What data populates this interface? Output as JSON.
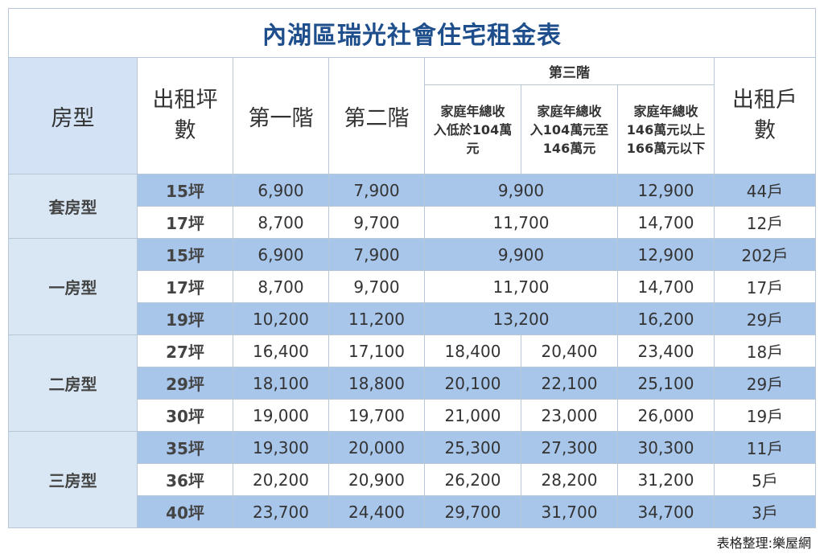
{
  "title": "內湖區瑞光社會住宅租金表",
  "headers": {
    "type": "房型",
    "size": "出租坪\n數",
    "floor1": "第一階",
    "floor2": "第二階",
    "floor3": "第三階",
    "floor3_sub": [
      "家庭年總收\n入低於104萬\n元",
      "家庭年總收\n入104萬元至\n146萬元",
      "家庭年總收\n146萬元以上\n166萬元以下"
    ],
    "units": "出租戶\n數"
  },
  "groups": [
    {
      "type": "套房型",
      "rows": [
        {
          "size": "15坪",
          "t1": "6,900",
          "t2": "7,900",
          "t3": "9,900",
          "t4": null,
          "t5": "12,900",
          "units": "44戶"
        },
        {
          "size": "17坪",
          "t1": "8,700",
          "t2": "9,700",
          "t3": "11,700",
          "t4": null,
          "t5": "14,700",
          "units": "12戶"
        }
      ]
    },
    {
      "type": "一房型",
      "rows": [
        {
          "size": "15坪",
          "t1": "6,900",
          "t2": "7,900",
          "t3": "9,900",
          "t4": null,
          "t5": "12,900",
          "units": "202戶"
        },
        {
          "size": "17坪",
          "t1": "8,700",
          "t2": "9,700",
          "t3": "11,700",
          "t4": null,
          "t5": "14,700",
          "units": "17戶"
        },
        {
          "size": "19坪",
          "t1": "10,200",
          "t2": "11,200",
          "t3": "13,200",
          "t4": null,
          "t5": "16,200",
          "units": "29戶"
        }
      ]
    },
    {
      "type": "二房型",
      "rows": [
        {
          "size": "27坪",
          "t1": "16,400",
          "t2": "17,100",
          "t3": "18,400",
          "t4": "20,400",
          "t5": "23,400",
          "units": "18戶"
        },
        {
          "size": "29坪",
          "t1": "18,100",
          "t2": "18,800",
          "t3": "20,100",
          "t4": "22,100",
          "t5": "25,100",
          "units": "29戶"
        },
        {
          "size": "30坪",
          "t1": "19,000",
          "t2": "19,700",
          "t3": "21,000",
          "t4": "23,000",
          "t5": "26,000",
          "units": "19戶"
        }
      ]
    },
    {
      "type": "三房型",
      "rows": [
        {
          "size": "35坪",
          "t1": "19,300",
          "t2": "20,000",
          "t3": "25,300",
          "t4": "27,300",
          "t5": "30,300",
          "units": "11戶"
        },
        {
          "size": "36坪",
          "t1": "20,200",
          "t2": "20,900",
          "t3": "26,200",
          "t4": "28,200",
          "t5": "31,200",
          "units": "5戶"
        },
        {
          "size": "40坪",
          "t1": "23,700",
          "t2": "24,400",
          "t3": "29,700",
          "t4": "31,700",
          "t5": "34,700",
          "units": "3戶"
        }
      ]
    }
  ],
  "credit": "表格整理:樂屋網",
  "colors": {
    "title": "#1e4e8c",
    "row_blue": "#a8c5ea",
    "type_bg": "#d9e6f4",
    "border": "#b7c7d8"
  }
}
